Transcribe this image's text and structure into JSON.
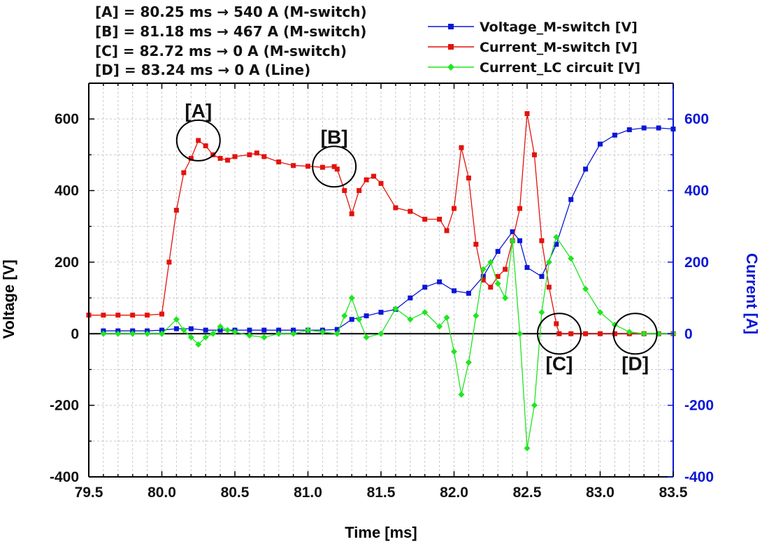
{
  "chart_data": {
    "type": "line",
    "x_range": [
      79.5,
      83.5
    ],
    "x_ticks": [
      "79.5",
      "80.0",
      "80.5",
      "81.0",
      "81.5",
      "82.0",
      "82.5",
      "83.0",
      "83.5"
    ],
    "x_label": "Time [ms]",
    "y_left_label": "Voltage [V]",
    "y_left_range": [
      -400,
      700
    ],
    "y_left_ticks": [
      "600",
      "400",
      "200",
      "0",
      "-200",
      "-400"
    ],
    "y_right_label": "Current [A]",
    "y_right_range": [
      -400,
      700
    ],
    "y_right_ticks": [
      "600",
      "400",
      "200",
      "0",
      "-200",
      "-400"
    ],
    "grid": true,
    "legend_position": "top-right",
    "series": [
      {
        "name": "Voltage_M-switch [V]",
        "color": "#0b16d6",
        "marker": "square",
        "axis": "right",
        "points": [
          [
            79.6,
            8
          ],
          [
            79.7,
            8
          ],
          [
            79.8,
            8
          ],
          [
            79.9,
            8
          ],
          [
            80.0,
            10
          ],
          [
            80.1,
            14
          ],
          [
            80.2,
            14
          ],
          [
            80.3,
            10
          ],
          [
            80.4,
            10
          ],
          [
            80.5,
            10
          ],
          [
            80.6,
            10
          ],
          [
            80.7,
            10
          ],
          [
            80.8,
            10
          ],
          [
            80.9,
            10
          ],
          [
            81.0,
            10
          ],
          [
            81.1,
            10
          ],
          [
            81.2,
            12
          ],
          [
            81.3,
            40
          ],
          [
            81.4,
            50
          ],
          [
            81.5,
            60
          ],
          [
            81.6,
            68
          ],
          [
            81.7,
            100
          ],
          [
            81.8,
            130
          ],
          [
            81.9,
            145
          ],
          [
            82.0,
            120
          ],
          [
            82.1,
            113
          ],
          [
            82.2,
            160
          ],
          [
            82.3,
            230
          ],
          [
            82.4,
            285
          ],
          [
            82.45,
            260
          ],
          [
            82.5,
            185
          ],
          [
            82.6,
            160
          ],
          [
            82.7,
            250
          ],
          [
            82.8,
            375
          ],
          [
            82.9,
            460
          ],
          [
            83.0,
            530
          ],
          [
            83.1,
            555
          ],
          [
            83.2,
            570
          ],
          [
            83.3,
            575
          ],
          [
            83.4,
            575
          ],
          [
            83.5,
            572
          ]
        ]
      },
      {
        "name": "Current_M-switch [V]",
        "color": "#e3120b",
        "marker": "square",
        "axis": "left",
        "points": [
          [
            79.5,
            52
          ],
          [
            79.6,
            52
          ],
          [
            79.7,
            52
          ],
          [
            79.8,
            52
          ],
          [
            79.9,
            52
          ],
          [
            80.0,
            55
          ],
          [
            80.05,
            200
          ],
          [
            80.1,
            345
          ],
          [
            80.15,
            450
          ],
          [
            80.2,
            490
          ],
          [
            80.25,
            540
          ],
          [
            80.3,
            525
          ],
          [
            80.35,
            500
          ],
          [
            80.4,
            490
          ],
          [
            80.45,
            485
          ],
          [
            80.5,
            495
          ],
          [
            80.6,
            500
          ],
          [
            80.65,
            505
          ],
          [
            80.7,
            495
          ],
          [
            80.8,
            480
          ],
          [
            80.9,
            470
          ],
          [
            81.0,
            468
          ],
          [
            81.1,
            465
          ],
          [
            81.18,
            467
          ],
          [
            81.2,
            460
          ],
          [
            81.25,
            400
          ],
          [
            81.3,
            335
          ],
          [
            81.35,
            400
          ],
          [
            81.4,
            430
          ],
          [
            81.45,
            440
          ],
          [
            81.5,
            420
          ],
          [
            81.6,
            352
          ],
          [
            81.7,
            342
          ],
          [
            81.8,
            320
          ],
          [
            81.9,
            320
          ],
          [
            81.95,
            288
          ],
          [
            82.0,
            350
          ],
          [
            82.05,
            520
          ],
          [
            82.1,
            435
          ],
          [
            82.15,
            250
          ],
          [
            82.2,
            150
          ],
          [
            82.25,
            130
          ],
          [
            82.3,
            160
          ],
          [
            82.35,
            180
          ],
          [
            82.4,
            260
          ],
          [
            82.45,
            350
          ],
          [
            82.5,
            615
          ],
          [
            82.55,
            500
          ],
          [
            82.6,
            260
          ],
          [
            82.65,
            130
          ],
          [
            82.7,
            28
          ],
          [
            82.72,
            0
          ],
          [
            82.8,
            0
          ],
          [
            82.9,
            0
          ],
          [
            83.0,
            0
          ],
          [
            83.1,
            0
          ],
          [
            83.2,
            0
          ],
          [
            83.3,
            0
          ],
          [
            83.4,
            0
          ],
          [
            83.5,
            0
          ]
        ]
      },
      {
        "name": "Current_LC circuit [V]",
        "color": "#1ee61e",
        "marker": "diamond",
        "axis": "left",
        "points": [
          [
            79.6,
            0
          ],
          [
            79.7,
            0
          ],
          [
            79.8,
            0
          ],
          [
            79.9,
            0
          ],
          [
            80.0,
            0
          ],
          [
            80.1,
            40
          ],
          [
            80.15,
            10
          ],
          [
            80.2,
            -10
          ],
          [
            80.25,
            -30
          ],
          [
            80.3,
            -10
          ],
          [
            80.35,
            0
          ],
          [
            80.4,
            20
          ],
          [
            80.45,
            10
          ],
          [
            80.5,
            5
          ],
          [
            80.6,
            -5
          ],
          [
            80.7,
            -10
          ],
          [
            80.8,
            0
          ],
          [
            80.9,
            0
          ],
          [
            81.0,
            10
          ],
          [
            81.1,
            5
          ],
          [
            81.2,
            0
          ],
          [
            81.25,
            50
          ],
          [
            81.3,
            100
          ],
          [
            81.35,
            40
          ],
          [
            81.4,
            -10
          ],
          [
            81.5,
            0
          ],
          [
            81.6,
            70
          ],
          [
            81.7,
            40
          ],
          [
            81.8,
            60
          ],
          [
            81.9,
            20
          ],
          [
            81.95,
            45
          ],
          [
            82.0,
            -50
          ],
          [
            82.05,
            -170
          ],
          [
            82.1,
            -80
          ],
          [
            82.15,
            50
          ],
          [
            82.2,
            180
          ],
          [
            82.25,
            200
          ],
          [
            82.3,
            140
          ],
          [
            82.35,
            100
          ],
          [
            82.4,
            260
          ],
          [
            82.45,
            0
          ],
          [
            82.5,
            -320
          ],
          [
            82.55,
            -200
          ],
          [
            82.6,
            60
          ],
          [
            82.65,
            200
          ],
          [
            82.7,
            270
          ],
          [
            82.8,
            210
          ],
          [
            82.9,
            125
          ],
          [
            83.0,
            60
          ],
          [
            83.1,
            25
          ],
          [
            83.2,
            5
          ],
          [
            83.3,
            0
          ],
          [
            83.4,
            0
          ],
          [
            83.5,
            0
          ]
        ]
      }
    ],
    "annotations": [
      {
        "label": "[A]",
        "x": 80.25,
        "y": 540
      },
      {
        "label": "[B]",
        "x": 81.18,
        "y": 467
      },
      {
        "label": "[C]",
        "x": 82.72,
        "y": 0
      },
      {
        "label": "[D]",
        "x": 83.24,
        "y": 0
      }
    ]
  },
  "header_notes": [
    "[A] = 80.25 ms → 540 A (M-switch)",
    "[B] = 81.18 ms → 467 A (M-switch)",
    "[C] = 82.72 ms → 0 A (M-switch)",
    "[D] = 83.24 ms → 0 A (Line)"
  ]
}
